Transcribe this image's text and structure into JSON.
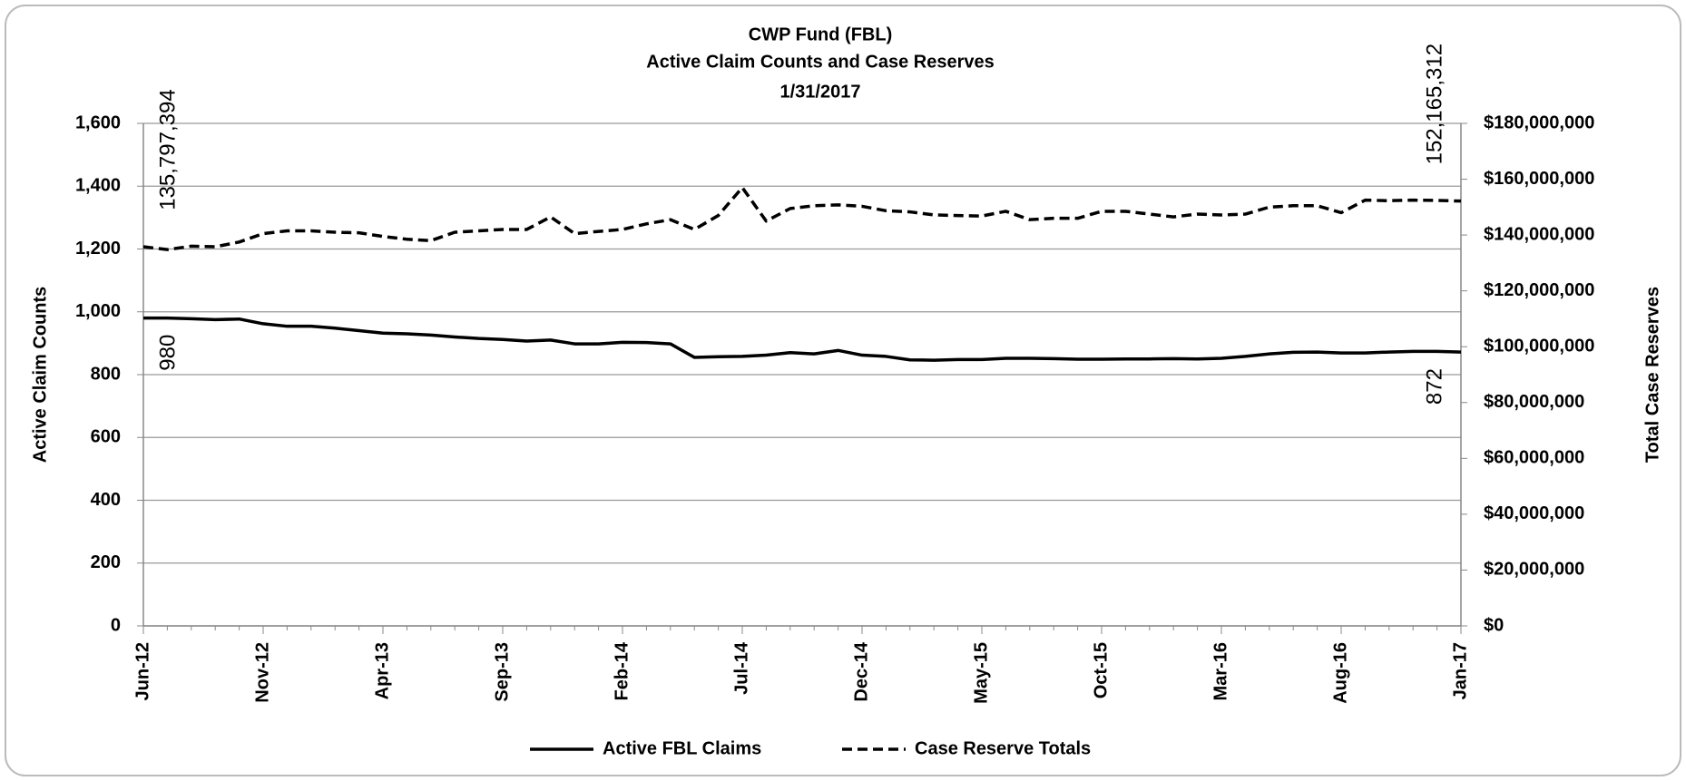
{
  "chart_data": {
    "type": "line",
    "title": "CWP Fund (FBL)",
    "subtitle": [
      "Active Claim Counts and Case Reserves",
      "1/31/2017"
    ],
    "ylabel": "Active Claim Counts",
    "y2label": "Total Case Reserves",
    "categories": [
      "Jun-12",
      null,
      null,
      null,
      null,
      "Nov-12",
      null,
      null,
      null,
      null,
      "Apr-13",
      null,
      null,
      null,
      null,
      "Sep-13",
      null,
      null,
      null,
      null,
      "Feb-14",
      null,
      null,
      null,
      null,
      "Jul-14",
      null,
      null,
      null,
      null,
      "Dec-14",
      null,
      null,
      null,
      null,
      "May-15",
      null,
      null,
      null,
      null,
      "Oct-15",
      null,
      null,
      null,
      null,
      "Mar-16",
      null,
      null,
      null,
      null,
      "Aug-16",
      null,
      null,
      null,
      null,
      "Jan-17"
    ],
    "ylim": [
      0,
      1600
    ],
    "yticks": [
      0,
      200,
      400,
      600,
      800,
      {
        "value": 1000,
        "label": "1,000"
      },
      {
        "value": 1200,
        "label": "1,200"
      },
      {
        "value": 1400,
        "label": "1,400"
      },
      {
        "value": 1600,
        "label": "1,600"
      }
    ],
    "y2lim": [
      0,
      180000000
    ],
    "y2ticks": [
      {
        "value": 0,
        "label": "$0"
      },
      {
        "value": 20000000,
        "label": "$20,000,000"
      },
      {
        "value": 40000000,
        "label": "$40,000,000"
      },
      {
        "value": 60000000,
        "label": "$60,000,000"
      },
      {
        "value": 80000000,
        "label": "$80,000,000"
      },
      {
        "value": 100000000,
        "label": "$100,000,000"
      },
      {
        "value": 120000000,
        "label": "$120,000,000"
      },
      {
        "value": 140000000,
        "label": "$140,000,000"
      },
      {
        "value": 160000000,
        "label": "$160,000,000"
      },
      {
        "value": 180000000,
        "label": "$180,000,000"
      }
    ],
    "grid": true,
    "legend": "bottom",
    "series": [
      {
        "name": "Active FBL Claims",
        "color": "#000000",
        "line_style": "solid",
        "axis": "y",
        "values": [
          980,
          980,
          978,
          975,
          977,
          962,
          954,
          954,
          948,
          940,
          932,
          930,
          926,
          920,
          915,
          912,
          907,
          910,
          898,
          898,
          903,
          902,
          898,
          855,
          857,
          858,
          862,
          870,
          866,
          877,
          862,
          858,
          847,
          846,
          848,
          848,
          852,
          852,
          851,
          849,
          849,
          850,
          850,
          851,
          850,
          852,
          858,
          866,
          871,
          872,
          869,
          869,
          872,
          874,
          874,
          872
        ],
        "value_labels": [
          "980",
          null,
          null,
          null,
          null,
          null,
          null,
          null,
          null,
          null,
          null,
          null,
          null,
          null,
          null,
          null,
          null,
          null,
          null,
          null,
          null,
          null,
          null,
          null,
          null,
          null,
          null,
          null,
          null,
          null,
          null,
          null,
          null,
          null,
          null,
          null,
          null,
          null,
          null,
          null,
          null,
          null,
          null,
          null,
          null,
          null,
          null,
          null,
          null,
          null,
          null,
          null,
          null,
          null,
          null,
          "872"
        ]
      },
      {
        "name": "Case Reserve Totals",
        "color": "#000000",
        "line_style": "dashed",
        "axis": "y2",
        "values": [
          135797394,
          134800000,
          136000000,
          135800000,
          137500000,
          140500000,
          141500000,
          141500000,
          141000000,
          140800000,
          139500000,
          138500000,
          138000000,
          141000000,
          141500000,
          142000000,
          142000000,
          146500000,
          140500000,
          141300000,
          142000000,
          144000000,
          145500000,
          142000000,
          147000000,
          157000000,
          145000000,
          149500000,
          150500000,
          150800000,
          150300000,
          148700000,
          148300000,
          147200000,
          147000000,
          146800000,
          148500000,
          145500000,
          146000000,
          146000000,
          148500000,
          148500000,
          147500000,
          146500000,
          147500000,
          147200000,
          147500000,
          150000000,
          150500000,
          150500000,
          148000000,
          152500000,
          152300000,
          152500000,
          152400000,
          152165312
        ],
        "value_labels": [
          "135,797,394",
          null,
          null,
          null,
          null,
          null,
          null,
          null,
          null,
          null,
          null,
          null,
          null,
          null,
          null,
          null,
          null,
          null,
          null,
          null,
          null,
          null,
          null,
          null,
          null,
          null,
          null,
          null,
          null,
          null,
          null,
          null,
          null,
          null,
          null,
          null,
          null,
          null,
          null,
          null,
          null,
          null,
          null,
          null,
          null,
          null,
          null,
          null,
          null,
          null,
          null,
          null,
          null,
          null,
          null,
          "152,165,312"
        ]
      }
    ]
  }
}
